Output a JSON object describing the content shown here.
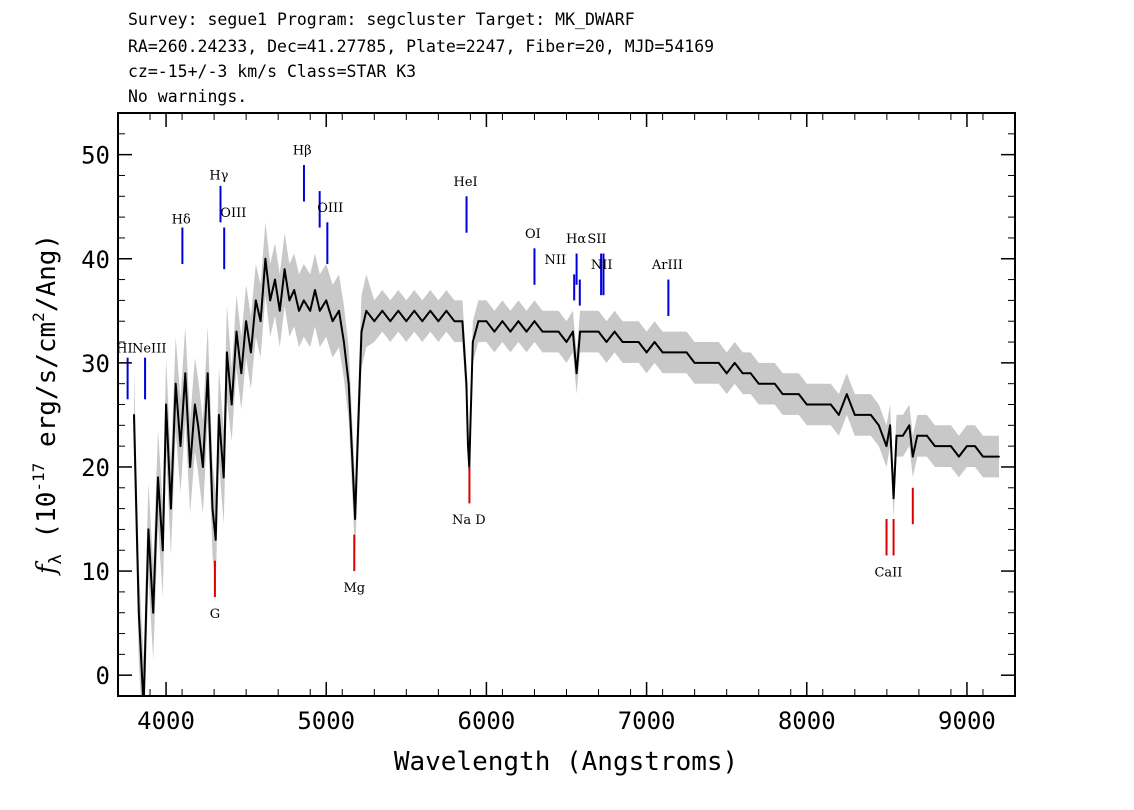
{
  "header": {
    "line1": "Survey: segue1 Program: segcluster Target: MK_DWARF",
    "line2": "RA=260.24233, Dec=41.27785, Plate=2247, Fiber=20, MJD=54169",
    "line3": "cz=-15+/-3 km/s Class=STAR K3",
    "line4": "No warnings."
  },
  "chart_data": {
    "type": "line",
    "xlabel": "Wavelength (Angstroms)",
    "ylabel": "f_λ (10^-17 erg/s/cm^2/Ang)",
    "xlim": [
      3700,
      9300
    ],
    "ylim": [
      -2,
      54
    ],
    "x_ticks": [
      4000,
      5000,
      6000,
      7000,
      8000,
      9000
    ],
    "y_ticks": [
      0,
      10,
      20,
      30,
      40,
      50
    ],
    "colors": {
      "flux": "#000000",
      "error_band": "#c8c8c8",
      "emission": "#0000dd",
      "absorption": "#dd0000"
    },
    "series": [
      {
        "points": [
          [
            3800,
            25
          ],
          [
            3830,
            6
          ],
          [
            3860,
            -3
          ],
          [
            3890,
            14
          ],
          [
            3920,
            6
          ],
          [
            3950,
            19
          ],
          [
            3980,
            12
          ],
          [
            4000,
            26
          ],
          [
            4030,
            16
          ],
          [
            4060,
            28
          ],
          [
            4090,
            22
          ],
          [
            4120,
            29
          ],
          [
            4150,
            20
          ],
          [
            4180,
            26
          ],
          [
            4200,
            24
          ],
          [
            4230,
            20
          ],
          [
            4260,
            29
          ],
          [
            4290,
            16
          ],
          [
            4310,
            13
          ],
          [
            4330,
            25
          ],
          [
            4360,
            19
          ],
          [
            4380,
            31
          ],
          [
            4410,
            26
          ],
          [
            4440,
            33
          ],
          [
            4470,
            29
          ],
          [
            4500,
            34
          ],
          [
            4530,
            31
          ],
          [
            4560,
            36
          ],
          [
            4590,
            34
          ],
          [
            4620,
            40
          ],
          [
            4650,
            36
          ],
          [
            4680,
            38
          ],
          [
            4710,
            35
          ],
          [
            4740,
            39
          ],
          [
            4770,
            36
          ],
          [
            4800,
            37
          ],
          [
            4830,
            35
          ],
          [
            4860,
            36
          ],
          [
            4900,
            35
          ],
          [
            4930,
            37
          ],
          [
            4960,
            35
          ],
          [
            5000,
            36
          ],
          [
            5040,
            34
          ],
          [
            5080,
            35
          ],
          [
            5110,
            32
          ],
          [
            5140,
            28
          ],
          [
            5165,
            20
          ],
          [
            5180,
            15
          ],
          [
            5195,
            22
          ],
          [
            5220,
            33
          ],
          [
            5250,
            35
          ],
          [
            5300,
            34
          ],
          [
            5350,
            35
          ],
          [
            5400,
            34
          ],
          [
            5450,
            35
          ],
          [
            5500,
            34
          ],
          [
            5550,
            35
          ],
          [
            5600,
            34
          ],
          [
            5650,
            35
          ],
          [
            5700,
            34
          ],
          [
            5750,
            35
          ],
          [
            5800,
            34
          ],
          [
            5850,
            34
          ],
          [
            5875,
            28
          ],
          [
            5885,
            22
          ],
          [
            5893,
            20
          ],
          [
            5900,
            24
          ],
          [
            5915,
            32
          ],
          [
            5950,
            34
          ],
          [
            6000,
            34
          ],
          [
            6050,
            33
          ],
          [
            6100,
            34
          ],
          [
            6150,
            33
          ],
          [
            6200,
            34
          ],
          [
            6250,
            33
          ],
          [
            6300,
            34
          ],
          [
            6350,
            33
          ],
          [
            6400,
            33
          ],
          [
            6450,
            33
          ],
          [
            6500,
            32
          ],
          [
            6540,
            33
          ],
          [
            6563,
            29
          ],
          [
            6585,
            33
          ],
          [
            6650,
            33
          ],
          [
            6700,
            33
          ],
          [
            6750,
            32
          ],
          [
            6800,
            33
          ],
          [
            6850,
            32
          ],
          [
            6900,
            32
          ],
          [
            6950,
            32
          ],
          [
            7000,
            31
          ],
          [
            7050,
            32
          ],
          [
            7100,
            31
          ],
          [
            7150,
            31
          ],
          [
            7200,
            31
          ],
          [
            7250,
            31
          ],
          [
            7300,
            30
          ],
          [
            7350,
            30
          ],
          [
            7400,
            30
          ],
          [
            7450,
            30
          ],
          [
            7500,
            29
          ],
          [
            7550,
            30
          ],
          [
            7600,
            29
          ],
          [
            7650,
            29
          ],
          [
            7700,
            28
          ],
          [
            7750,
            28
          ],
          [
            7800,
            28
          ],
          [
            7850,
            27
          ],
          [
            7900,
            27
          ],
          [
            7950,
            27
          ],
          [
            8000,
            26
          ],
          [
            8050,
            26
          ],
          [
            8100,
            26
          ],
          [
            8150,
            26
          ],
          [
            8200,
            25
          ],
          [
            8250,
            27
          ],
          [
            8300,
            25
          ],
          [
            8350,
            25
          ],
          [
            8400,
            25
          ],
          [
            8450,
            24
          ],
          [
            8498,
            22
          ],
          [
            8520,
            24
          ],
          [
            8542,
            17
          ],
          [
            8560,
            23
          ],
          [
            8600,
            23
          ],
          [
            8640,
            24
          ],
          [
            8662,
            21
          ],
          [
            8690,
            23
          ],
          [
            8750,
            23
          ],
          [
            8800,
            22
          ],
          [
            8850,
            22
          ],
          [
            8900,
            22
          ],
          [
            8950,
            21
          ],
          [
            9000,
            22
          ],
          [
            9050,
            22
          ],
          [
            9100,
            21
          ],
          [
            9150,
            21
          ],
          [
            9200,
            21
          ]
        ]
      }
    ],
    "emission_lines": [
      {
        "label": "HI",
        "x": 3760,
        "y1": 26.5,
        "y2": 30.5
      },
      {
        "label": "NeIII",
        "x": 3869,
        "y1": 26.5,
        "y2": 30.5
      },
      {
        "label": "Hδ",
        "x": 4102,
        "y1": 39.5,
        "y2": 43.0
      },
      {
        "label": "Hγ",
        "x": 4340,
        "y1": 43.5,
        "y2": 47.0
      },
      {
        "label": "OIII",
        "x": 4363,
        "y1": 39.0,
        "y2": 43.0
      },
      {
        "label": "Hβ",
        "x": 4861,
        "y1": 45.5,
        "y2": 49.0
      },
      {
        "label": "OIII",
        "x": 4959,
        "y1": 43.0,
        "y2": 46.5
      },
      {
        "label": "OIII",
        "x": 5007,
        "y1": 39.5,
        "y2": 43.5
      },
      {
        "label": "HeI",
        "x": 5876,
        "y1": 42.5,
        "y2": 46.0
      },
      {
        "label": "OI",
        "x": 6300,
        "y1": 37.5,
        "y2": 41.0
      },
      {
        "label": "NII",
        "x": 6548,
        "y1": 36.0,
        "y2": 38.5
      },
      {
        "label": "Hα",
        "x": 6563,
        "y1": 37.5,
        "y2": 40.5
      },
      {
        "label": "NII",
        "x": 6583,
        "y1": 35.5,
        "y2": 38.0
      },
      {
        "label": "SII",
        "x": 6716,
        "y1": 36.5,
        "y2": 40.5
      },
      {
        "label": "SII",
        "x": 6731,
        "y1": 36.5,
        "y2": 40.5
      },
      {
        "label": "ArIII",
        "x": 7136,
        "y1": 34.5,
        "y2": 38.0
      }
    ],
    "absorption_lines": [
      {
        "label": "G",
        "x": 4305,
        "y1": 7.5,
        "y2": 11.0
      },
      {
        "label": "Mg",
        "x": 5175,
        "y1": 10.0,
        "y2": 13.5
      },
      {
        "label": "Na D",
        "x": 5894,
        "y1": 16.5,
        "y2": 20.0
      },
      {
        "label": "CaII",
        "x": 8498,
        "y1": 11.5,
        "y2": 15.0
      },
      {
        "label": "CaII",
        "x": 8542,
        "y1": 11.5,
        "y2": 15.0
      },
      {
        "label": "CaII",
        "x": 8662,
        "y1": 14.5,
        "y2": 18.0
      }
    ],
    "line_labels": [
      {
        "text": "HI",
        "x": 3740,
        "y": 31.0
      },
      {
        "text": "NeIII",
        "x": 3895,
        "y": 31.0
      },
      {
        "text": "Hδ",
        "x": 4095,
        "y": 43.4
      },
      {
        "text": "Hγ",
        "x": 4330,
        "y": 47.6
      },
      {
        "text": "OIII",
        "x": 4420,
        "y": 44.0
      },
      {
        "text": "Hβ",
        "x": 4850,
        "y": 50.0
      },
      {
        "text": "OIII",
        "x": 5025,
        "y": 44.5
      },
      {
        "text": "HeI",
        "x": 5870,
        "y": 47.0
      },
      {
        "text": "OI",
        "x": 6290,
        "y": 42.0
      },
      {
        "text": "NII",
        "x": 6430,
        "y": 39.5
      },
      {
        "text": "Hα",
        "x": 6560,
        "y": 41.5
      },
      {
        "text": "SII",
        "x": 6690,
        "y": 41.5
      },
      {
        "text": "NII",
        "x": 6720,
        "y": 39.0
      },
      {
        "text": "ArIII",
        "x": 7130,
        "y": 39.0
      },
      {
        "text": "G",
        "x": 4305,
        "y": 5.5
      },
      {
        "text": "Mg",
        "x": 5175,
        "y": 8.0
      },
      {
        "text": "Na D",
        "x": 5890,
        "y": 14.5
      },
      {
        "text": "CaII",
        "x": 8510,
        "y": 9.5
      }
    ]
  }
}
